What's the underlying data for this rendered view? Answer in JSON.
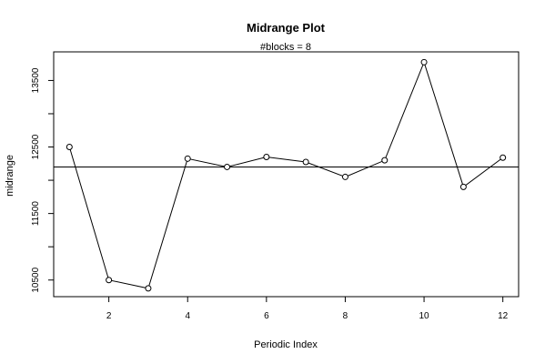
{
  "chart_data": {
    "type": "line",
    "title": "Midrange Plot",
    "subtitle": "#blocks =  8",
    "xlabel": "Periodic Index",
    "ylabel": "midrange",
    "xlim": [
      0.6,
      12.4
    ],
    "ylim": [
      10250,
      13930
    ],
    "x_ticks": [
      2,
      4,
      6,
      8,
      10,
      12
    ],
    "y_ticks": [
      10500,
      11500,
      12500,
      13500
    ],
    "x_tick_labels": [
      "2",
      "4",
      "6",
      "8",
      "10",
      "12"
    ],
    "y_tick_labels": [
      "10500",
      "11500",
      "12500",
      "13500"
    ],
    "y_minor_ticks": [
      11000,
      12000,
      13000
    ],
    "reference_line": 12200,
    "marker": "open-circle",
    "x": [
      1,
      2,
      3,
      4,
      5,
      6,
      7,
      8,
      9,
      10,
      11,
      12
    ],
    "values": [
      12500,
      10500,
      10375,
      12325,
      12200,
      12350,
      12275,
      12050,
      12300,
      13775,
      11900,
      12340
    ],
    "grid": false,
    "legend": "none"
  }
}
